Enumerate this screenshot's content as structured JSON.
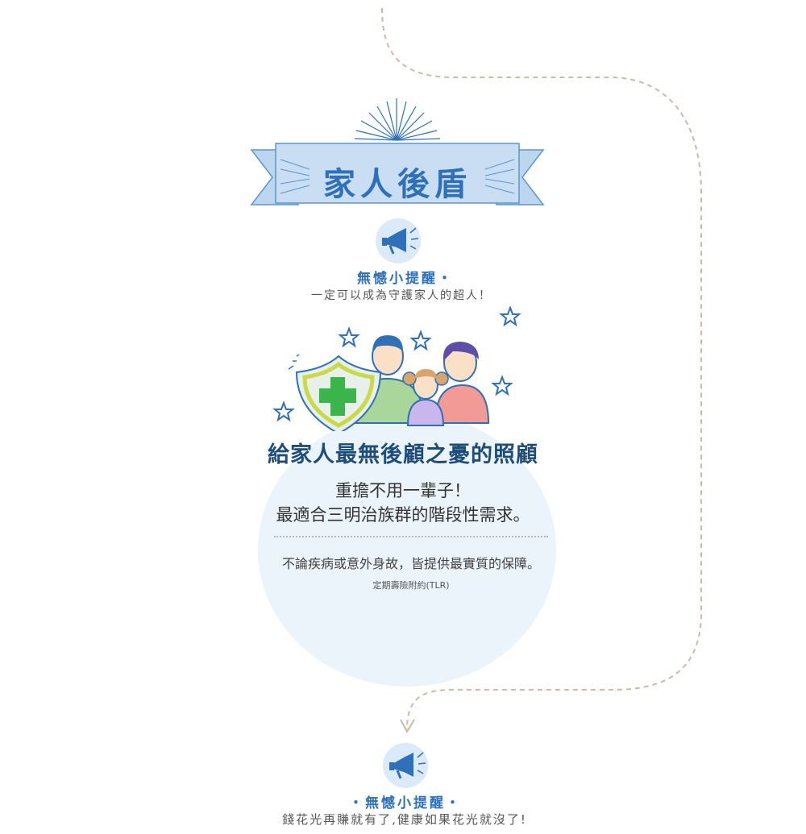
{
  "section": {
    "banner_title": "家人後盾",
    "reminder_top": {
      "title": "無憾小提醒・",
      "text": "一定可以成為守護家人的超人！"
    },
    "headline": "給家人最無後顧之憂的照顧",
    "sub_line_1": "重擔不用一輩子！",
    "sub_line_2": "最適合三明治族群的階段性需求。",
    "body_text": "不論疾病或意外身故，皆提供最實質的保障。",
    "product_name": "定期壽險附約(TLR)"
  },
  "reminder_bottom": {
    "title": "・無憾小提醒・",
    "text": "錢花光再賺就有了,健康如果花光就沒了!"
  },
  "colors": {
    "accent_blue": "#2f70b8",
    "banner_fill": "#c9def3",
    "circle_bg": "#ebf4fb",
    "dash_path": "#cbbba6"
  },
  "icons": [
    "megaphone-icon",
    "shield-cross-icon",
    "family-illustration",
    "star-doodle-icon",
    "sunburst-decoration"
  ]
}
